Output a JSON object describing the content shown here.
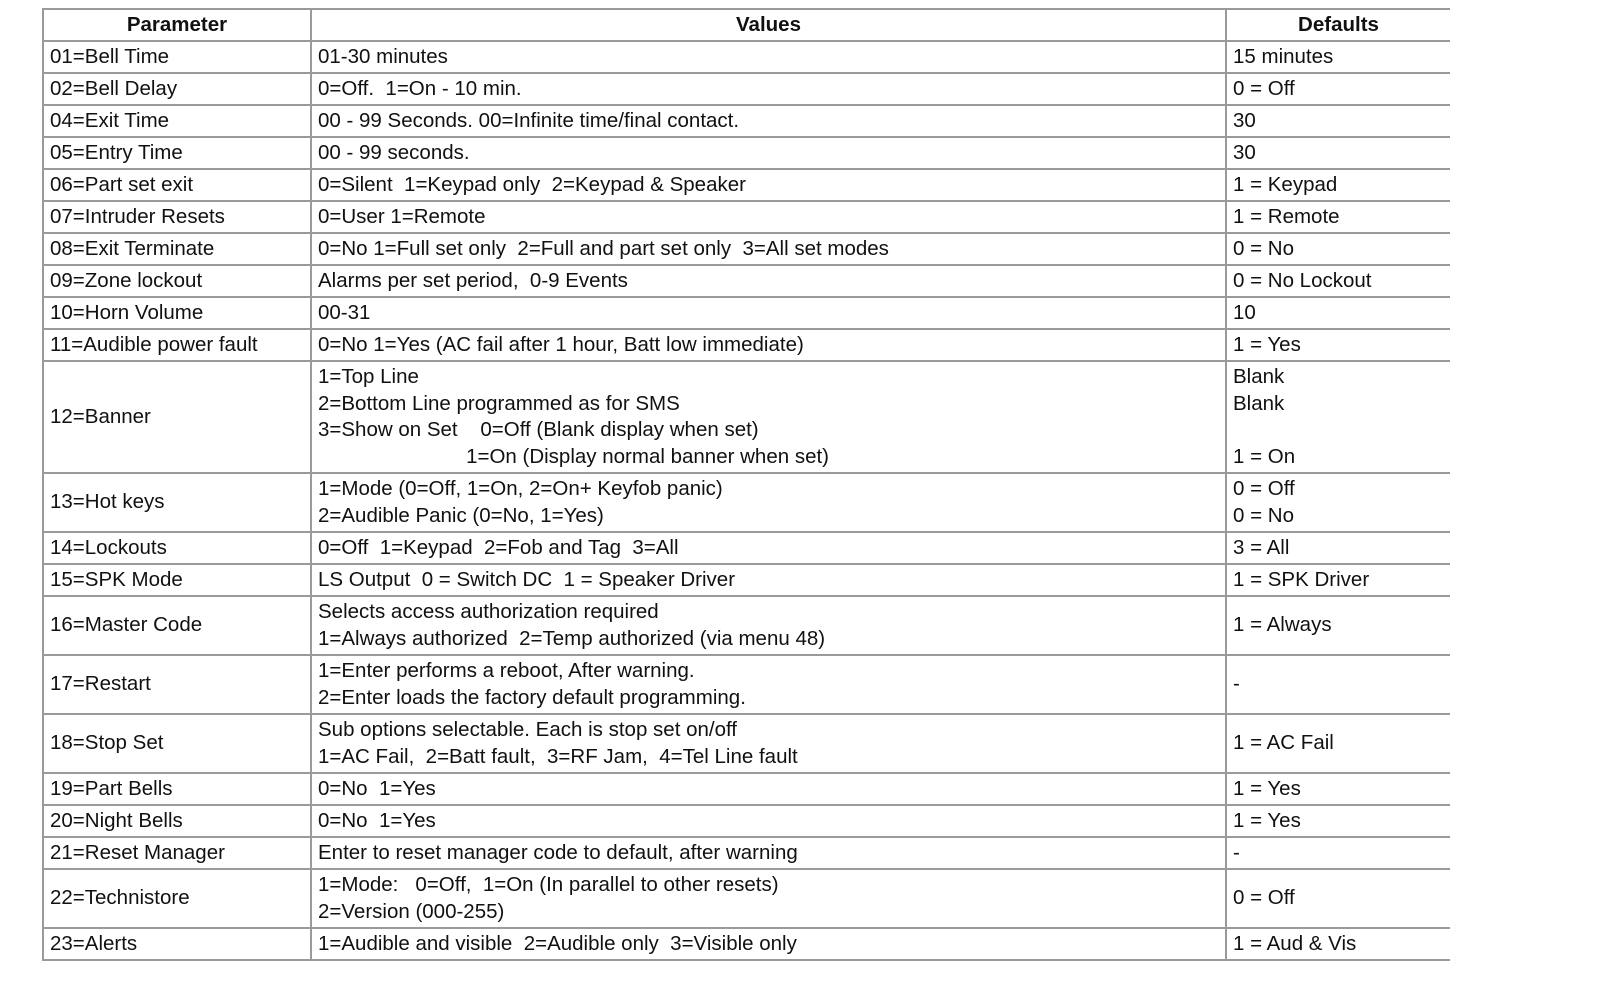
{
  "headers": [
    "Parameter",
    "Values",
    "Defaults"
  ],
  "rows": [
    {
      "param": "01=Bell Time",
      "values": [
        "01-30 minutes"
      ],
      "defaults": [
        "15 minutes"
      ]
    },
    {
      "param": "02=Bell Delay",
      "values": [
        "0=Off.  1=On - 10 min."
      ],
      "defaults": [
        "0 = Off"
      ]
    },
    {
      "param": "04=Exit Time",
      "values": [
        "00 - 99 Seconds. 00=Infinite time/final contact."
      ],
      "defaults": [
        "30"
      ]
    },
    {
      "param": "05=Entry Time",
      "values": [
        "00 - 99 seconds."
      ],
      "defaults": [
        "30"
      ]
    },
    {
      "param": "06=Part set exit",
      "values": [
        "0=Silent  1=Keypad only  2=Keypad & Speaker"
      ],
      "defaults": [
        "1 = Keypad"
      ]
    },
    {
      "param": "07=Intruder Resets",
      "values": [
        "0=User 1=Remote"
      ],
      "defaults": [
        "1 = Remote"
      ]
    },
    {
      "param": "08=Exit Terminate",
      "values": [
        "0=No 1=Full set only  2=Full and part set only  3=All set modes"
      ],
      "defaults": [
        "0 = No"
      ]
    },
    {
      "param": "09=Zone lockout",
      "values": [
        "Alarms per set period,  0-9 Events"
      ],
      "defaults": [
        "0 = No Lockout"
      ]
    },
    {
      "param": "10=Horn Volume",
      "values": [
        "00-31"
      ],
      "defaults": [
        "10"
      ]
    },
    {
      "param": "11=Audible power fault",
      "values": [
        "0=No 1=Yes (AC fail after 1 hour, Batt low immediate)"
      ],
      "defaults": [
        "1 = Yes"
      ]
    },
    {
      "param": "12=Banner",
      "values": [
        "1=Top Line",
        "2=Bottom Line programmed as for SMS",
        "3=Show on Set    0=Off (Blank display when set)",
        "                          1=On (Display normal banner when set)"
      ],
      "defaults": [
        "Blank",
        "Blank",
        " ",
        "1 = On"
      ]
    },
    {
      "param": "13=Hot keys",
      "values": [
        "1=Mode (0=Off, 1=On, 2=On+ Keyfob panic)",
        "2=Audible Panic (0=No, 1=Yes)"
      ],
      "defaults": [
        "0 = Off",
        "0 = No"
      ]
    },
    {
      "param": "14=Lockouts",
      "values": [
        "0=Off  1=Keypad  2=Fob and Tag  3=All"
      ],
      "defaults": [
        "3 = All"
      ]
    },
    {
      "param": "15=SPK Mode",
      "values": [
        "LS Output  0 = Switch DC  1 = Speaker Driver"
      ],
      "defaults": [
        "1 = SPK Driver"
      ]
    },
    {
      "param": "16=Master Code",
      "values": [
        "Selects access authorization required",
        "1=Always authorized  2=Temp authorized (via menu 48)"
      ],
      "defaults": [
        "1 = Always"
      ]
    },
    {
      "param": "17=Restart",
      "values": [
        "1=Enter performs a reboot, After warning.",
        "2=Enter loads the factory default programming."
      ],
      "defaults": [
        "-"
      ]
    },
    {
      "param": "18=Stop Set",
      "values": [
        "Sub options selectable. Each is stop set on/off",
        "1=AC Fail,  2=Batt fault,  3=RF Jam,  4=Tel Line fault"
      ],
      "defaults": [
        "1 = AC Fail"
      ]
    },
    {
      "param": "19=Part Bells",
      "values": [
        "0=No  1=Yes"
      ],
      "defaults": [
        "1 = Yes"
      ]
    },
    {
      "param": "20=Night Bells",
      "values": [
        "0=No  1=Yes"
      ],
      "defaults": [
        "1 = Yes"
      ]
    },
    {
      "param": "21=Reset Manager",
      "values": [
        "Enter to reset manager code to default, after warning"
      ],
      "defaults": [
        "-"
      ]
    },
    {
      "param": "22=Technistore",
      "values": [
        "1=Mode:   0=Off,  1=On (In parallel to other resets)",
        "2=Version (000-255)"
      ],
      "defaults": [
        "0 = Off"
      ]
    },
    {
      "param": "23=Alerts",
      "values": [
        "1=Audible and visible  2=Audible only  3=Visible only"
      ],
      "defaults": [
        "1 = Aud & Vis"
      ]
    }
  ]
}
